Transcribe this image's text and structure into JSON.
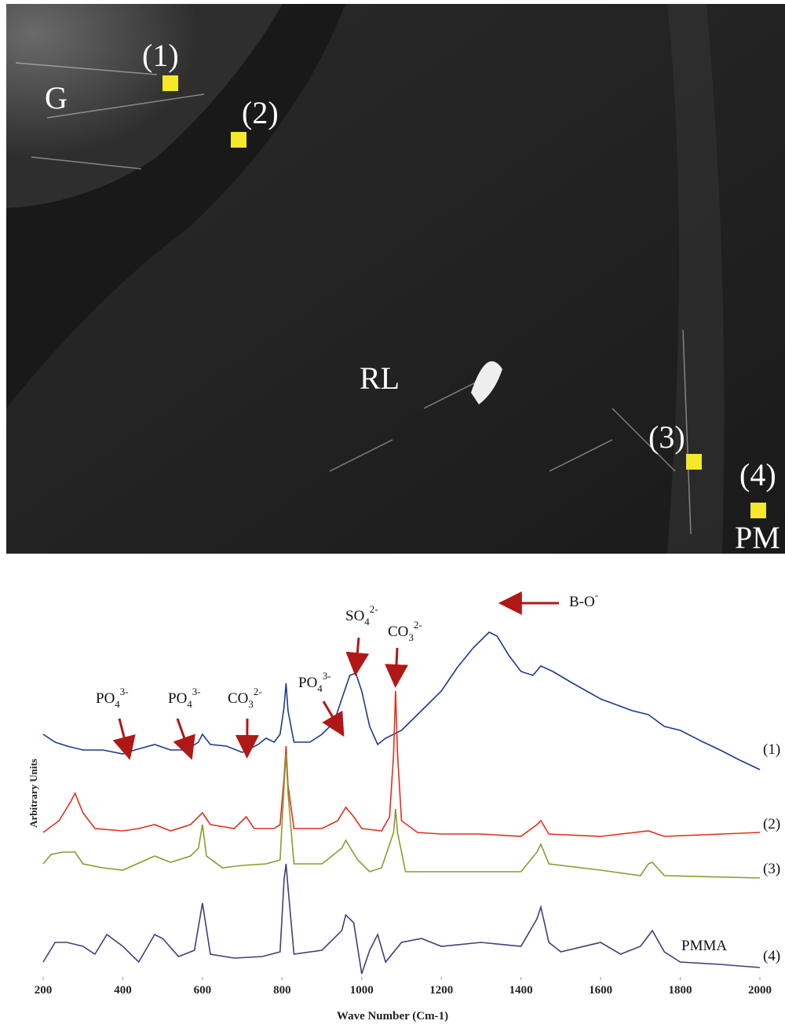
{
  "image": {
    "labels": [
      "G",
      "(1)",
      "(2)",
      "RL",
      "(3)",
      "(4)",
      "PM"
    ]
  },
  "chart_data": {
    "type": "line",
    "xlabel": "Wave Number (Cm-1)",
    "ylabel": "Arbitrary Units",
    "xlim": [
      200,
      2000
    ],
    "xticks": [
      200,
      400,
      600,
      800,
      1000,
      1200,
      1400,
      1600,
      1800,
      2000
    ],
    "ylim": [
      0,
      455
    ],
    "series": [
      {
        "name": "(1)",
        "color": "#1e3a8c",
        "x": [
          200,
          230,
          260,
          300,
          350,
          400,
          430,
          480,
          520,
          560,
          590,
          600,
          620,
          660,
          700,
          740,
          760,
          780,
          795,
          805,
          810,
          815,
          830,
          870,
          900,
          930,
          950,
          970,
          985,
          1000,
          1020,
          1040,
          1060,
          1080,
          1100,
          1130,
          1160,
          1200,
          1240,
          1280,
          1320,
          1340,
          1370,
          1400,
          1430,
          1450,
          1480,
          1530,
          1600,
          1680,
          1720,
          1760,
          1800,
          1850,
          1900,
          1950,
          2000
        ],
        "values": [
          300,
          290,
          285,
          280,
          280,
          275,
          280,
          287,
          280,
          280,
          290,
          300,
          287,
          285,
          277,
          287,
          295,
          290,
          300,
          335,
          365,
          330,
          290,
          290,
          300,
          315,
          345,
          375,
          378,
          355,
          310,
          287,
          295,
          300,
          305,
          320,
          335,
          355,
          385,
          410,
          430,
          425,
          400,
          380,
          375,
          387,
          380,
          365,
          345,
          330,
          325,
          310,
          305,
          292,
          280,
          267,
          255
        ]
      },
      {
        "name": "(2)",
        "color": "#e0301e",
        "x": [
          200,
          240,
          270,
          280,
          300,
          330,
          400,
          440,
          480,
          520,
          570,
          600,
          620,
          680,
          710,
          730,
          780,
          795,
          805,
          810,
          815,
          830,
          900,
          940,
          960,
          980,
          1000,
          1050,
          1070,
          1080,
          1085,
          1090,
          1100,
          1140,
          1200,
          1300,
          1400,
          1440,
          1450,
          1470,
          1600,
          1720,
          1760,
          2000
        ],
        "values": [
          175,
          190,
          215,
          225,
          200,
          180,
          177,
          180,
          185,
          177,
          185,
          200,
          185,
          180,
          195,
          180,
          180,
          185,
          245,
          285,
          235,
          180,
          180,
          190,
          207,
          195,
          180,
          177,
          195,
          275,
          355,
          275,
          190,
          175,
          173,
          173,
          170,
          185,
          190,
          173,
          170,
          177,
          170,
          175
        ]
      },
      {
        "name": "(3)",
        "color": "#8c9a2e",
        "x": [
          200,
          220,
          250,
          280,
          300,
          350,
          400,
          480,
          520,
          570,
          590,
          600,
          610,
          650,
          700,
          760,
          795,
          805,
          810,
          815,
          830,
          900,
          950,
          960,
          990,
          1020,
          1050,
          1080,
          1085,
          1090,
          1110,
          1200,
          1300,
          1400,
          1440,
          1450,
          1470,
          1600,
          1700,
          1720,
          1730,
          1760,
          2000
        ],
        "values": [
          135,
          147,
          150,
          150,
          135,
          130,
          127,
          145,
          137,
          145,
          155,
          185,
          145,
          130,
          133,
          135,
          140,
          235,
          275,
          225,
          135,
          135,
          155,
          165,
          140,
          125,
          130,
          175,
          205,
          175,
          125,
          125,
          125,
          125,
          150,
          160,
          135,
          127,
          120,
          135,
          137,
          120,
          117
        ]
      },
      {
        "name": "(4)",
        "color": "#4b3a78",
        "x": [
          200,
          230,
          260,
          300,
          330,
          360,
          400,
          440,
          480,
          500,
          540,
          580,
          600,
          620,
          680,
          750,
          795,
          805,
          810,
          815,
          830,
          900,
          950,
          960,
          980,
          1000,
          1020,
          1040,
          1060,
          1100,
          1150,
          1200,
          1300,
          1400,
          1440,
          1450,
          1470,
          1500,
          1600,
          1650,
          1700,
          1730,
          1760,
          1800,
          1900,
          2000
        ],
        "values": [
          10,
          35,
          35,
          30,
          20,
          45,
          30,
          10,
          45,
          40,
          17,
          25,
          85,
          20,
          15,
          17,
          23,
          115,
          135,
          105,
          20,
          25,
          50,
          70,
          60,
          -5,
          25,
          45,
          10,
          35,
          40,
          30,
          35,
          30,
          65,
          80,
          35,
          23,
          35,
          20,
          30,
          50,
          23,
          10,
          7,
          3
        ]
      }
    ],
    "annotations": [
      {
        "base": "PO",
        "sub": "4",
        "sup": "3-",
        "x": 415
      },
      {
        "base": "PO",
        "sub": "4",
        "sup": "3-",
        "x": 570
      },
      {
        "base": "CO",
        "sub": "3",
        "sup": "2-",
        "x": 712
      },
      {
        "base": "PO",
        "sub": "4",
        "sup": "3-",
        "x": 950
      },
      {
        "base": "SO",
        "sub": "4",
        "sup": "2-",
        "x": 985
      },
      {
        "base": "CO",
        "sub": "3",
        "sup": "2-",
        "x": 1085
      },
      {
        "base": "B-O",
        "sup": "-",
        "x": 1355
      }
    ],
    "extra_labels": [
      "PMMA"
    ]
  }
}
